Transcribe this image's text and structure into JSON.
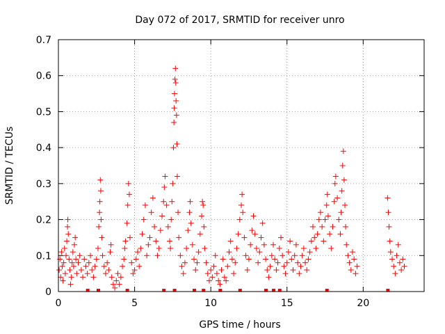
{
  "chart_data": {
    "type": "scatter",
    "title": "Day 072 of 2017, SRMTID for receiver unro",
    "xlabel": "GPS time / hours",
    "ylabel": "SRMTID / TECUs",
    "xlim": [
      0,
      24
    ],
    "ylim": [
      0,
      0.7
    ],
    "x_ticks": [
      0,
      5,
      10,
      15,
      20
    ],
    "y_ticks": [
      0,
      0.1,
      0.2,
      0.3,
      0.4,
      0.5,
      0.6,
      0.7
    ],
    "x_tick_labels": [
      "0",
      "5",
      "10",
      "15",
      "20"
    ],
    "y_tick_labels": [
      "0",
      "0.1",
      "0.2",
      "0.3",
      "0.4",
      "0.5",
      "0.6",
      "0.7"
    ],
    "grid": true,
    "marker": "+",
    "series": [
      {
        "name": "SRMTID",
        "color": "#ff0000",
        "points": [
          [
            0.05,
            0.06
          ],
          [
            0.1,
            0.09
          ],
          [
            0.15,
            0.04
          ],
          [
            0.2,
            0.11
          ],
          [
            0.25,
            0.07
          ],
          [
            0.3,
            0.03
          ],
          [
            0.35,
            0.08
          ],
          [
            0.4,
            0.12
          ],
          [
            0.45,
            0.05
          ],
          [
            0.5,
            0.1
          ],
          [
            0.55,
            0.14
          ],
          [
            0.6,
            0.18
          ],
          [
            0.62,
            0.2
          ],
          [
            0.65,
            0.16
          ],
          [
            0.7,
            0.09
          ],
          [
            0.75,
            0.06
          ],
          [
            0.8,
            0.02
          ],
          [
            0.85,
            0.04
          ],
          [
            0.9,
            0.08
          ],
          [
            0.95,
            0.11
          ],
          [
            1.0,
            0.07
          ],
          [
            1.05,
            0.13
          ],
          [
            1.1,
            0.15
          ],
          [
            1.15,
            0.09
          ],
          [
            1.2,
            0.05
          ],
          [
            1.3,
            0.08
          ],
          [
            1.4,
            0.1
          ],
          [
            1.5,
            0.06
          ],
          [
            1.6,
            0.04
          ],
          [
            1.7,
            0.09
          ],
          [
            1.8,
            0.07
          ],
          [
            1.9,
            0.05
          ],
          [
            2.0,
            0.08
          ],
          [
            2.1,
            0.1
          ],
          [
            2.2,
            0.06
          ],
          [
            2.3,
            0.04
          ],
          [
            2.4,
            0.07
          ],
          [
            2.5,
            0.09
          ],
          [
            2.6,
            0.12
          ],
          [
            2.65,
            0.18
          ],
          [
            2.7,
            0.22
          ],
          [
            2.72,
            0.25
          ],
          [
            2.75,
            0.31
          ],
          [
            2.78,
            0.28
          ],
          [
            2.8,
            0.2
          ],
          [
            2.85,
            0.15
          ],
          [
            2.9,
            0.1
          ],
          [
            3.0,
            0.07
          ],
          [
            3.1,
            0.05
          ],
          [
            3.2,
            0.08
          ],
          [
            3.3,
            0.06
          ],
          [
            3.4,
            0.11
          ],
          [
            3.45,
            0.13
          ],
          [
            3.5,
            0.04
          ],
          [
            3.6,
            0.02
          ],
          [
            3.7,
            0.01
          ],
          [
            3.8,
            0.03
          ],
          [
            3.9,
            0.05
          ],
          [
            4.0,
            0.02
          ],
          [
            4.1,
            0.04
          ],
          [
            4.2,
            0.07
          ],
          [
            4.3,
            0.09
          ],
          [
            4.35,
            0.12
          ],
          [
            4.4,
            0.14
          ],
          [
            4.5,
            0.19
          ],
          [
            4.55,
            0.24
          ],
          [
            4.6,
            0.3
          ],
          [
            4.65,
            0.27
          ],
          [
            4.7,
            0.15
          ],
          [
            4.8,
            0.08
          ],
          [
            4.9,
            0.05
          ],
          [
            5.0,
            0.06
          ],
          [
            5.1,
            0.09
          ],
          [
            5.2,
            0.11
          ],
          [
            5.3,
            0.07
          ],
          [
            5.4,
            0.12
          ],
          [
            5.5,
            0.16
          ],
          [
            5.6,
            0.2
          ],
          [
            5.7,
            0.24
          ],
          [
            5.8,
            0.1
          ],
          [
            5.9,
            0.13
          ],
          [
            6.0,
            0.15
          ],
          [
            6.1,
            0.22
          ],
          [
            6.2,
            0.26
          ],
          [
            6.3,
            0.18
          ],
          [
            6.4,
            0.14
          ],
          [
            6.5,
            0.1
          ],
          [
            6.6,
            0.12
          ],
          [
            6.7,
            0.17
          ],
          [
            6.8,
            0.21
          ],
          [
            6.9,
            0.25
          ],
          [
            6.95,
            0.29
          ],
          [
            7.0,
            0.32
          ],
          [
            7.1,
            0.24
          ],
          [
            7.2,
            0.18
          ],
          [
            7.3,
            0.14
          ],
          [
            7.35,
            0.12
          ],
          [
            7.4,
            0.2
          ],
          [
            7.45,
            0.25
          ],
          [
            7.5,
            0.3
          ],
          [
            7.55,
            0.4
          ],
          [
            7.58,
            0.47
          ],
          [
            7.6,
            0.51
          ],
          [
            7.62,
            0.55
          ],
          [
            7.65,
            0.59
          ],
          [
            7.68,
            0.62
          ],
          [
            7.7,
            0.58
          ],
          [
            7.72,
            0.53
          ],
          [
            7.75,
            0.49
          ],
          [
            7.78,
            0.41
          ],
          [
            7.8,
            0.32
          ],
          [
            7.85,
            0.22
          ],
          [
            7.9,
            0.15
          ],
          [
            8.0,
            0.1
          ],
          [
            8.1,
            0.07
          ],
          [
            8.2,
            0.05
          ],
          [
            8.3,
            0.08
          ],
          [
            8.4,
            0.12
          ],
          [
            8.5,
            0.17
          ],
          [
            8.6,
            0.22
          ],
          [
            8.65,
            0.25
          ],
          [
            8.7,
            0.19
          ],
          [
            8.8,
            0.13
          ],
          [
            8.9,
            0.09
          ],
          [
            9.0,
            0.06
          ],
          [
            9.1,
            0.08
          ],
          [
            9.2,
            0.11
          ],
          [
            9.3,
            0.16
          ],
          [
            9.4,
            0.21
          ],
          [
            9.45,
            0.25
          ],
          [
            9.5,
            0.24
          ],
          [
            9.55,
            0.18
          ],
          [
            9.6,
            0.12
          ],
          [
            9.7,
            0.08
          ],
          [
            9.8,
            0.05
          ],
          [
            9.9,
            0.03
          ],
          [
            10.0,
            0.06
          ],
          [
            10.1,
            0.04
          ],
          [
            10.2,
            0.07
          ],
          [
            10.3,
            0.1
          ],
          [
            10.4,
            0.05
          ],
          [
            10.5,
            0.03
          ],
          [
            10.6,
            0.02
          ],
          [
            10.7,
            0.06
          ],
          [
            10.8,
            0.09
          ],
          [
            10.9,
            0.04
          ],
          [
            11.0,
            0.03
          ],
          [
            11.1,
            0.07
          ],
          [
            11.2,
            0.11
          ],
          [
            11.3,
            0.14
          ],
          [
            11.4,
            0.09
          ],
          [
            11.5,
            0.05
          ],
          [
            11.6,
            0.08
          ],
          [
            11.7,
            0.12
          ],
          [
            11.8,
            0.16
          ],
          [
            11.9,
            0.2
          ],
          [
            12.0,
            0.24
          ],
          [
            12.05,
            0.27
          ],
          [
            12.1,
            0.22
          ],
          [
            12.2,
            0.15
          ],
          [
            12.3,
            0.1
          ],
          [
            12.4,
            0.06
          ],
          [
            12.5,
            0.09
          ],
          [
            12.6,
            0.13
          ],
          [
            12.7,
            0.17
          ],
          [
            12.8,
            0.21
          ],
          [
            12.9,
            0.16
          ],
          [
            13.0,
            0.12
          ],
          [
            13.1,
            0.08
          ],
          [
            13.2,
            0.11
          ],
          [
            13.3,
            0.15
          ],
          [
            13.4,
            0.19
          ],
          [
            13.5,
            0.13
          ],
          [
            13.6,
            0.09
          ],
          [
            13.7,
            0.06
          ],
          [
            13.8,
            0.04
          ],
          [
            13.9,
            0.07
          ],
          [
            14.0,
            0.1
          ],
          [
            14.1,
            0.13
          ],
          [
            14.2,
            0.09
          ],
          [
            14.3,
            0.06
          ],
          [
            14.4,
            0.08
          ],
          [
            14.5,
            0.12
          ],
          [
            14.6,
            0.15
          ],
          [
            14.7,
            0.1
          ],
          [
            14.8,
            0.07
          ],
          [
            14.9,
            0.05
          ],
          [
            15.0,
            0.08
          ],
          [
            15.1,
            0.11
          ],
          [
            15.2,
            0.14
          ],
          [
            15.3,
            0.09
          ],
          [
            15.4,
            0.06
          ],
          [
            15.5,
            0.1
          ],
          [
            15.6,
            0.13
          ],
          [
            15.7,
            0.08
          ],
          [
            15.8,
            0.05
          ],
          [
            15.9,
            0.07
          ],
          [
            16.0,
            0.1
          ],
          [
            16.1,
            0.12
          ],
          [
            16.2,
            0.08
          ],
          [
            16.3,
            0.06
          ],
          [
            16.4,
            0.09
          ],
          [
            16.5,
            0.11
          ],
          [
            16.6,
            0.14
          ],
          [
            16.7,
            0.18
          ],
          [
            16.8,
            0.15
          ],
          [
            16.9,
            0.12
          ],
          [
            17.0,
            0.16
          ],
          [
            17.1,
            0.2
          ],
          [
            17.2,
            0.22
          ],
          [
            17.3,
            0.18
          ],
          [
            17.4,
            0.14
          ],
          [
            17.5,
            0.2
          ],
          [
            17.6,
            0.24
          ],
          [
            17.65,
            0.27
          ],
          [
            17.7,
            0.21
          ],
          [
            17.8,
            0.16
          ],
          [
            17.9,
            0.12
          ],
          [
            18.0,
            0.18
          ],
          [
            18.1,
            0.25
          ],
          [
            18.15,
            0.3
          ],
          [
            18.2,
            0.32
          ],
          [
            18.3,
            0.26
          ],
          [
            18.4,
            0.2
          ],
          [
            18.5,
            0.16
          ],
          [
            18.55,
            0.22
          ],
          [
            18.6,
            0.28
          ],
          [
            18.65,
            0.35
          ],
          [
            18.7,
            0.39
          ],
          [
            18.75,
            0.31
          ],
          [
            18.8,
            0.24
          ],
          [
            18.85,
            0.18
          ],
          [
            18.9,
            0.13
          ],
          [
            19.0,
            0.1
          ],
          [
            19.1,
            0.08
          ],
          [
            19.2,
            0.06
          ],
          [
            19.3,
            0.11
          ],
          [
            19.4,
            0.09
          ],
          [
            19.5,
            0.05
          ],
          [
            19.6,
            0.07
          ],
          [
            21.6,
            0.26
          ],
          [
            21.65,
            0.22
          ],
          [
            21.7,
            0.18
          ],
          [
            21.75,
            0.14
          ],
          [
            21.8,
            0.11
          ],
          [
            21.9,
            0.09
          ],
          [
            22.0,
            0.07
          ],
          [
            22.1,
            0.05
          ],
          [
            22.2,
            0.1
          ],
          [
            22.3,
            0.13
          ],
          [
            22.4,
            0.08
          ],
          [
            22.5,
            0.06
          ],
          [
            22.6,
            0.09
          ],
          [
            22.7,
            0.07
          ]
        ]
      }
    ],
    "zero_markers": [
      1.9,
      2.6,
      4.5,
      6.9,
      7.6,
      8.9,
      9.5,
      10.6,
      11.9,
      13.6,
      14.1,
      14.5,
      17.6,
      21.6
    ]
  }
}
